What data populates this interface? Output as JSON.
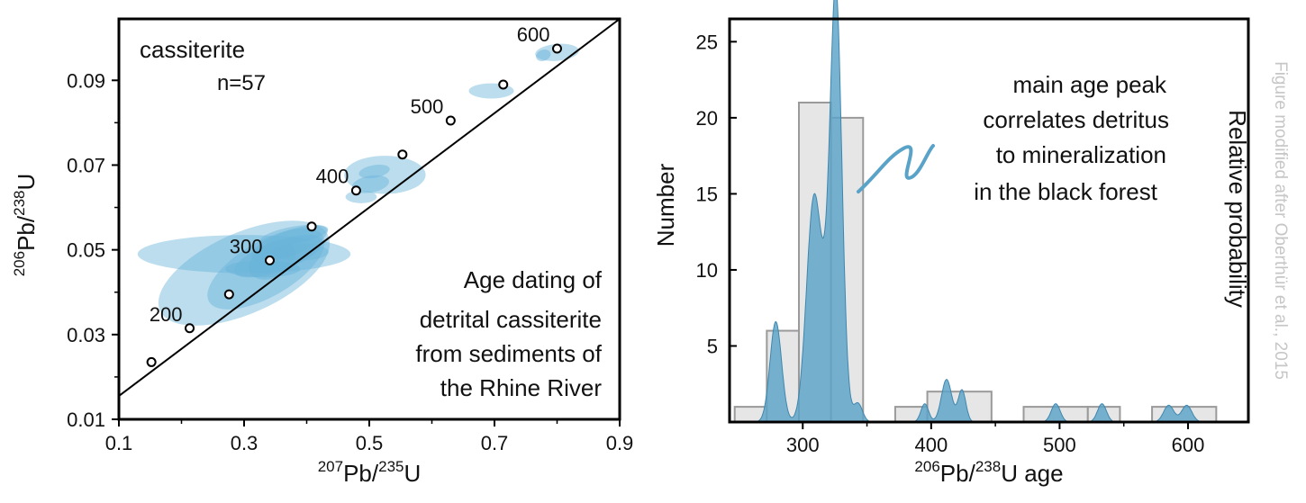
{
  "colors": {
    "ellipse_fill": "#69b4d9",
    "kde_fill": "#5aa3c8",
    "kde_stroke": "#3f86ad",
    "bar_fill": "#e6e6e6",
    "bar_stroke": "#9a9a9a",
    "credit": "#c6c6c6"
  },
  "credit": "Figure modified after Oberthür et al., 2015",
  "chart_data": [
    {
      "type": "scatter",
      "subtype": "concordia",
      "xlabel": {
        "sup1": "207",
        "base1": "Pb/",
        "sup2": "235",
        "base2": "U"
      },
      "ylabel": {
        "sup1": "206",
        "base1": "Pb/",
        "sup2": "238",
        "base2": "U"
      },
      "xlim": [
        0.1,
        0.9
      ],
      "ylim": [
        0.01,
        0.1045
      ],
      "xticks": [
        0.1,
        0.3,
        0.5,
        0.7,
        0.9
      ],
      "xticklabels": [
        "0.1",
        "0.3",
        "0.5",
        "0.7",
        "0.9"
      ],
      "yticks": [
        0.01,
        0.03,
        0.05,
        0.07,
        0.09
      ],
      "yticklabels": [
        "0.01",
        "0.03",
        "0.05",
        "0.07",
        "0.09"
      ],
      "sample_label": "cassiterite",
      "n_label": "n=57",
      "annotation": [
        "Age dating of",
        "detrital cassiterite",
        "from sediments of",
        "the Rhine River"
      ],
      "concordia_line": [
        [
          0.1,
          0.0155
        ],
        [
          0.9,
          0.1045
        ]
      ],
      "concordia_points": [
        {
          "x": 0.152,
          "y": 0.0235,
          "age": ""
        },
        {
          "x": 0.213,
          "y": 0.0315,
          "age": "200"
        },
        {
          "x": 0.276,
          "y": 0.0395,
          "age": ""
        },
        {
          "x": 0.341,
          "y": 0.0475,
          "age": "300"
        },
        {
          "x": 0.408,
          "y": 0.0555,
          "age": ""
        },
        {
          "x": 0.479,
          "y": 0.064,
          "age": "400"
        },
        {
          "x": 0.553,
          "y": 0.0725,
          "age": ""
        },
        {
          "x": 0.63,
          "y": 0.0805,
          "age": "500"
        },
        {
          "x": 0.714,
          "y": 0.089,
          "age": ""
        },
        {
          "x": 0.8,
          "y": 0.0975,
          "age": "600"
        }
      ],
      "error_ellipses": [
        {
          "cx": 0.3,
          "cy": 0.0445,
          "rx": 0.147,
          "ry": 0.0095,
          "rot": -24,
          "a": 0.45
        },
        {
          "cx": 0.3,
          "cy": 0.049,
          "rx": 0.17,
          "ry": 0.0045,
          "rot": 0,
          "a": 0.45
        },
        {
          "cx": 0.335,
          "cy": 0.0455,
          "rx": 0.105,
          "ry": 0.0065,
          "rot": -30,
          "a": 0.45
        },
        {
          "cx": 0.355,
          "cy": 0.0485,
          "rx": 0.075,
          "ry": 0.0035,
          "rot": -20,
          "a": 0.5
        },
        {
          "cx": 0.372,
          "cy": 0.0515,
          "rx": 0.065,
          "ry": 0.003,
          "rot": -20,
          "a": 0.5
        },
        {
          "cx": 0.33,
          "cy": 0.0455,
          "rx": 0.06,
          "ry": 0.002,
          "rot": 0,
          "a": 0.5
        },
        {
          "cx": 0.38,
          "cy": 0.0535,
          "rx": 0.055,
          "ry": 0.002,
          "rot": -10,
          "a": 0.45
        },
        {
          "cx": 0.345,
          "cy": 0.0475,
          "rx": 0.04,
          "ry": 0.004,
          "rot": -30,
          "a": 0.5
        },
        {
          "cx": 0.39,
          "cy": 0.0495,
          "rx": 0.045,
          "ry": 0.002,
          "rot": 0,
          "a": 0.4
        },
        {
          "cx": 0.525,
          "cy": 0.0677,
          "rx": 0.065,
          "ry": 0.0045,
          "rot": 0,
          "a": 0.45
        },
        {
          "cx": 0.502,
          "cy": 0.0655,
          "rx": 0.03,
          "ry": 0.002,
          "rot": -10,
          "a": 0.45
        },
        {
          "cx": 0.508,
          "cy": 0.0685,
          "rx": 0.025,
          "ry": 0.0015,
          "rot": -10,
          "a": 0.45
        },
        {
          "cx": 0.487,
          "cy": 0.0625,
          "rx": 0.025,
          "ry": 0.0015,
          "rot": 0,
          "a": 0.45
        },
        {
          "cx": 0.695,
          "cy": 0.0875,
          "rx": 0.036,
          "ry": 0.0018,
          "rot": 0,
          "a": 0.45
        },
        {
          "cx": 0.8,
          "cy": 0.0966,
          "rx": 0.035,
          "ry": 0.002,
          "rot": -5,
          "a": 0.45
        },
        {
          "cx": 0.778,
          "cy": 0.0959,
          "rx": 0.012,
          "ry": 0.0013,
          "rot": -20,
          "a": 0.5
        }
      ]
    },
    {
      "type": "bar",
      "subtype": "histogram_with_kde",
      "xlabel": {
        "sup1": "206",
        "base1": "Pb/",
        "sup2": "238",
        "base2": "U age"
      },
      "ylabel": "Number",
      "ylabel_right": "Relative probability",
      "xlim": [
        243,
        647
      ],
      "ylim": [
        0,
        26.5
      ],
      "xticks": [
        300,
        400,
        500,
        600
      ],
      "xticklabels": [
        "300",
        "400",
        "500",
        "600"
      ],
      "yticks": [
        5,
        10,
        15,
        20,
        25
      ],
      "yticklabels": [
        "5",
        "10",
        "15",
        "20",
        "25"
      ],
      "annotation": [
        "main age peak",
        "correlates detritus",
        "to mineralization",
        "in the black forest"
      ],
      "bins": [
        {
          "x0": 247,
          "x1": 272,
          "count": 1
        },
        {
          "x0": 272,
          "x1": 297,
          "count": 6
        },
        {
          "x0": 297,
          "x1": 322,
          "count": 21
        },
        {
          "x0": 322,
          "x1": 347,
          "count": 20
        },
        {
          "x0": 372,
          "x1": 397,
          "count": 1
        },
        {
          "x0": 397,
          "x1": 447,
          "count": 2
        },
        {
          "x0": 472,
          "x1": 522,
          "count": 1
        },
        {
          "x0": 522,
          "x1": 547,
          "count": 1
        },
        {
          "x0": 572,
          "x1": 622,
          "count": 1
        }
      ],
      "kde_components": [
        {
          "mu": 279,
          "sigma": 4.5,
          "h": 6.6
        },
        {
          "mu": 308,
          "sigma": 5.5,
          "h": 12.0
        },
        {
          "mu": 326,
          "sigma": 4.5,
          "h": 25.0
        },
        {
          "mu": 318,
          "sigma": 8,
          "h": 6.0
        },
        {
          "mu": 343,
          "sigma": 3.5,
          "h": 1.2
        },
        {
          "mu": 395,
          "sigma": 3,
          "h": 1.2
        },
        {
          "mu": 412,
          "sigma": 4,
          "h": 2.8
        },
        {
          "mu": 424,
          "sigma": 3,
          "h": 2.1
        },
        {
          "mu": 497,
          "sigma": 3.5,
          "h": 1.2
        },
        {
          "mu": 533,
          "sigma": 3.5,
          "h": 1.2
        },
        {
          "mu": 585,
          "sigma": 4,
          "h": 1.1
        },
        {
          "mu": 599,
          "sigma": 4,
          "h": 1.1
        }
      ]
    }
  ]
}
